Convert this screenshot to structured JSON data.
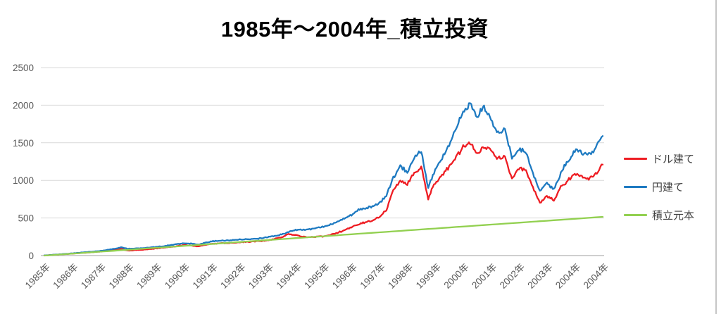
{
  "chart_data": {
    "type": "line",
    "title": "1985年〜2004年_積立投資",
    "x_axis": {
      "start_year": 1985.0,
      "end_year": 2005.0,
      "tick_labels": [
        "1985年",
        "1986年",
        "1987年",
        "1988年",
        "1989年",
        "1990年",
        "1991年",
        "1992年",
        "1993年",
        "1994年",
        "1995年",
        "1996年",
        "1997年",
        "1998年",
        "1999年",
        "2000年",
        "2001年",
        "2002年",
        "2003年",
        "2004年",
        "2004年"
      ]
    },
    "y_axis": {
      "min": 0,
      "max": 2500,
      "ticks": [
        0,
        500,
        1000,
        1500,
        2000,
        2500
      ]
    },
    "grid": true,
    "legend_position": "right",
    "sample_step_years": 0.25,
    "series": [
      {
        "id": "usd",
        "name": "ドル建て",
        "color": "#ee1d23",
        "noisy": true,
        "values": [
          2,
          7,
          13,
          19,
          26,
          33,
          39,
          46,
          53,
          63,
          75,
          88,
          65,
          72,
          78,
          84,
          95,
          105,
          115,
          125,
          138,
          132,
          120,
          138,
          155,
          162,
          166,
          170,
          178,
          183,
          188,
          192,
          205,
          222,
          245,
          285,
          275,
          252,
          245,
          250,
          255,
          278,
          305,
          338,
          378,
          415,
          445,
          468,
          515,
          600,
          880,
          990,
          950,
          1090,
          1170,
          760,
          975,
          1075,
          1180,
          1310,
          1450,
          1500,
          1350,
          1460,
          1390,
          1280,
          1330,
          1010,
          1160,
          1140,
          900,
          700,
          790,
          730,
          905,
          1000,
          1075,
          1050,
          1025,
          1085,
          1210
        ]
      },
      {
        "id": "jpy",
        "name": "円建て",
        "color": "#1e7ac1",
        "noisy": true,
        "values": [
          2,
          8,
          15,
          22,
          30,
          38,
          45,
          53,
          62,
          75,
          90,
          108,
          90,
          96,
          100,
          105,
          115,
          125,
          138,
          152,
          165,
          160,
          145,
          168,
          190,
          196,
          200,
          205,
          215,
          220,
          222,
          228,
          245,
          262,
          280,
          315,
          345,
          340,
          350,
          365,
          385,
          415,
          450,
          495,
          540,
          605,
          635,
          655,
          700,
          800,
          1030,
          1180,
          1120,
          1290,
          1390,
          900,
          1150,
          1300,
          1450,
          1700,
          1920,
          2030,
          1850,
          1980,
          1800,
          1620,
          1680,
          1290,
          1400,
          1390,
          1090,
          860,
          960,
          880,
          1100,
          1260,
          1400,
          1370,
          1340,
          1430,
          1590
        ]
      },
      {
        "id": "principal",
        "name": "積立元本",
        "color": "#92d050",
        "noisy": false,
        "values": [
          0,
          6,
          13,
          19,
          26,
          32,
          39,
          45,
          52,
          58,
          64,
          71,
          77,
          84,
          90,
          97,
          103,
          109,
          116,
          122,
          129,
          135,
          141,
          148,
          154,
          161,
          167,
          174,
          180,
          187,
          193,
          199,
          206,
          212,
          219,
          225,
          232,
          238,
          244,
          251,
          257,
          264,
          270,
          277,
          283,
          290,
          296,
          302,
          309,
          315,
          322,
          328,
          335,
          341,
          347,
          354,
          360,
          367,
          373,
          380,
          386,
          392,
          399,
          405,
          412,
          418,
          425,
          431,
          437,
          444,
          450,
          457,
          463,
          470,
          476,
          482,
          489,
          495,
          502,
          508,
          515
        ]
      }
    ]
  },
  "colors": {
    "grid": "#d9d9d9",
    "axis": "#bfbfbf",
    "tick_text": "#595959",
    "title_text": "#000000",
    "legend_text": "#404040",
    "right_border": "#c6c6c6",
    "background": "#ffffff"
  }
}
